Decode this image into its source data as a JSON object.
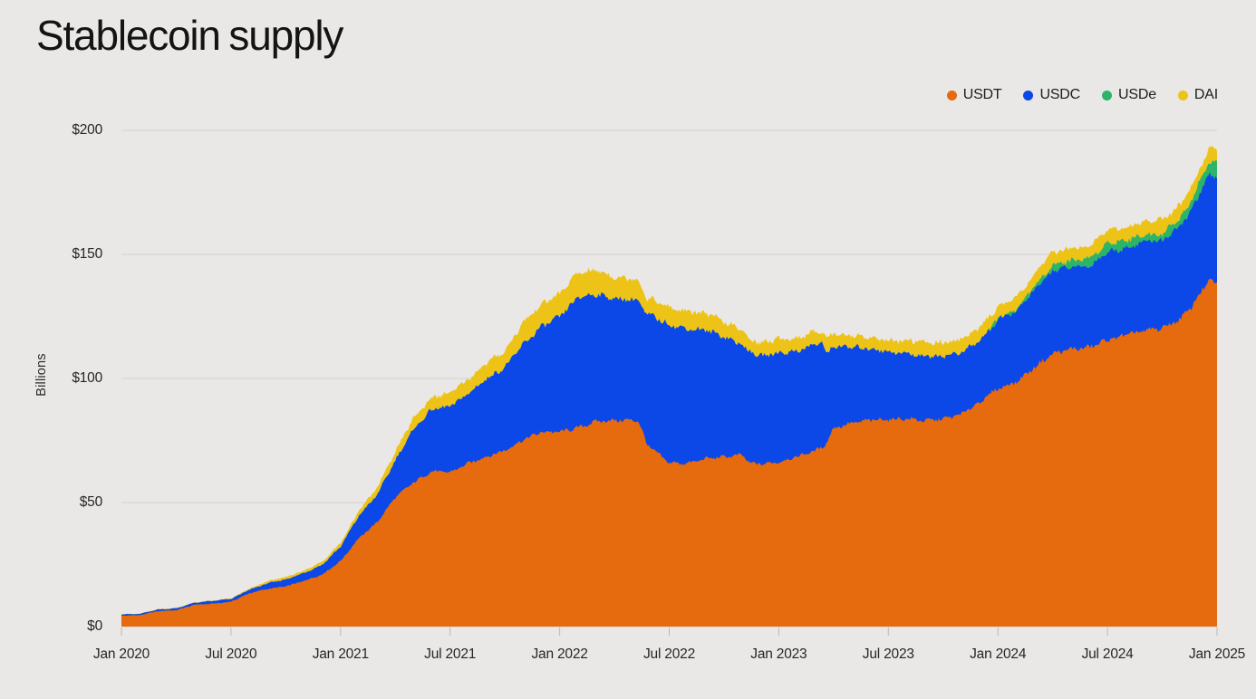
{
  "title": "Stablecoin supply",
  "background": "#e9e8e6",
  "chart_data": {
    "type": "area",
    "stacked": true,
    "title": "Stablecoin supply",
    "ylabel": "Billions",
    "unit": "billions of US dollars",
    "ylim": [
      0,
      200
    ],
    "grid": "horizontal",
    "legend_position": "top-right",
    "x_unit": "months since Jan 2020 (fractional = intra-month event)",
    "x_range_labels": [
      "Jan 2020",
      "Jan 2025"
    ],
    "x": [
      0,
      1,
      2,
      3,
      4,
      5,
      6,
      7,
      8,
      9,
      10,
      11,
      12,
      13,
      14,
      15,
      16,
      17,
      18,
      19,
      20,
      21,
      22,
      23,
      24,
      25,
      26,
      27,
      28,
      28.3,
      28.8,
      29,
      30,
      31,
      32,
      33,
      34,
      34.4,
      35,
      36,
      37,
      38,
      38.35,
      38.6,
      39,
      40,
      41,
      42,
      43,
      44,
      45,
      46,
      47,
      48,
      49,
      50,
      51,
      52,
      53,
      54,
      55,
      56,
      57,
      58,
      58.5,
      59,
      59.6,
      60
    ],
    "series": [
      {
        "name": "USDT",
        "color": "#e66a0e",
        "values": [
          4.4,
          4.6,
          6.2,
          6.6,
          8.8,
          9.2,
          10.0,
          13.4,
          15.2,
          16.2,
          18.4,
          21.0,
          26.4,
          35.6,
          42.0,
          52.1,
          58.1,
          62.6,
          62.2,
          65.8,
          68.5,
          71.0,
          75.3,
          78.4,
          78.5,
          80.1,
          82.7,
          83.1,
          83.2,
          83.0,
          73.3,
          72.0,
          66.0,
          65.8,
          67.7,
          68.4,
          69.2,
          65.9,
          65.5,
          66.3,
          68.5,
          71.0,
          72.0,
          74.0,
          80.0,
          82.0,
          83.2,
          83.5,
          83.8,
          83.0,
          83.7,
          85.6,
          90.5,
          96.0,
          98.5,
          104.5,
          110.0,
          111.8,
          112.5,
          115.5,
          117.5,
          119.2,
          120.3,
          124.0,
          128.0,
          133.5,
          140.0,
          137.5
        ]
      },
      {
        "name": "USDC",
        "color": "#0c47e8",
        "values": [
          0.5,
          0.46,
          0.68,
          0.73,
          0.8,
          1.1,
          1.1,
          1.4,
          2.2,
          2.8,
          3.2,
          3.9,
          5.8,
          9.0,
          11.0,
          14.9,
          21.5,
          24.9,
          26.5,
          28.1,
          31.4,
          33.5,
          38.4,
          42.4,
          46.3,
          52.5,
          51.3,
          49.0,
          48.6,
          48.4,
          52.0,
          53.5,
          55.6,
          54.2,
          51.8,
          48.5,
          44.3,
          44.8,
          43.5,
          44.0,
          42.5,
          42.8,
          42.4,
          36.0,
          33.0,
          30.5,
          28.9,
          27.3,
          26.2,
          26.0,
          25.4,
          24.8,
          24.6,
          27.5,
          28.5,
          31.0,
          33.5,
          33.0,
          32.6,
          35.5,
          35.0,
          36.0,
          35.3,
          37.5,
          38.5,
          40.5,
          42.0,
          43.5
        ]
      },
      {
        "name": "USDe",
        "color": "#2cb46a",
        "values": [
          0,
          0,
          0,
          0,
          0,
          0,
          0,
          0,
          0,
          0,
          0,
          0,
          0,
          0,
          0,
          0,
          0,
          0,
          0,
          0,
          0,
          0,
          0,
          0,
          0,
          0,
          0,
          0,
          0,
          0,
          0,
          0,
          0,
          0,
          0,
          0,
          0,
          0,
          0,
          0,
          0,
          0,
          0,
          0,
          0,
          0,
          0,
          0,
          0,
          0,
          0,
          0,
          0,
          0.3,
          0.8,
          1.6,
          2.3,
          2.7,
          3.3,
          3.6,
          3.2,
          2.7,
          2.8,
          3.4,
          3.8,
          4.8,
          5.8,
          5.9
        ]
      },
      {
        "name": "DAI",
        "color": "#edc318",
        "values": [
          0.12,
          0.13,
          0.1,
          0.1,
          0.12,
          0.15,
          0.3,
          0.45,
          0.9,
          0.95,
          1.0,
          1.2,
          1.5,
          2.0,
          2.9,
          3.6,
          4.5,
          4.9,
          5.4,
          5.8,
          6.4,
          6.6,
          8.9,
          9.1,
          9.4,
          10.0,
          9.7,
          8.8,
          8.5,
          8.3,
          6.8,
          6.7,
          6.9,
          7.0,
          6.8,
          6.0,
          5.7,
          5.3,
          5.2,
          5.7,
          5.2,
          5.1,
          5.0,
          6.0,
          5.4,
          4.8,
          4.6,
          4.4,
          5.3,
          5.5,
          5.3,
          5.4,
          5.3,
          5.0,
          4.9,
          4.9,
          5.0,
          5.1,
          5.1,
          5.2,
          5.1,
          5.3,
          5.8,
          5.3,
          5.3,
          5.3,
          5.3,
          5.3
        ]
      }
    ],
    "y_ticks": [
      {
        "value": 0,
        "label": "$0"
      },
      {
        "value": 50,
        "label": "$50"
      },
      {
        "value": 100,
        "label": "$100"
      },
      {
        "value": 150,
        "label": "$150"
      },
      {
        "value": 200,
        "label": "$200"
      }
    ],
    "x_ticks": [
      {
        "m": 0,
        "label": "Jan 2020"
      },
      {
        "m": 6,
        "label": "Jul 2020"
      },
      {
        "m": 12,
        "label": "Jan 2021"
      },
      {
        "m": 18,
        "label": "Jul 2021"
      },
      {
        "m": 24,
        "label": "Jan 2022"
      },
      {
        "m": 30,
        "label": "Jul 2022"
      },
      {
        "m": 36,
        "label": "Jan 2023"
      },
      {
        "m": 42,
        "label": "Jul 2023"
      },
      {
        "m": 48,
        "label": "Jan 2024"
      },
      {
        "m": 54,
        "label": "Jul 2024"
      },
      {
        "m": 60,
        "label": "Jan 2025"
      }
    ],
    "colors": {
      "gridline": "#d2d1ce",
      "tick_mark": "#b9b8b5",
      "axis_text": "#262625"
    }
  }
}
